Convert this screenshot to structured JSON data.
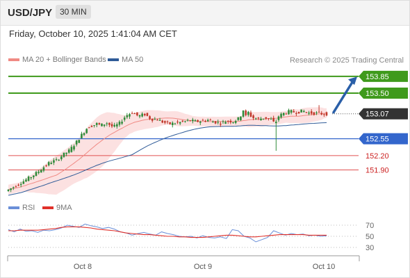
{
  "header": {
    "pair": "USD/JPY",
    "timeframe": "30 MIN"
  },
  "datetime": "Friday, October 10, 2025 1:41:04 AM CET",
  "legend": {
    "main": [
      {
        "label": "MA 20 + Bollinger Bands",
        "color": "#f08a84"
      },
      {
        "label": "MA 50",
        "color": "#2f5b98"
      }
    ],
    "rsi": [
      {
        "label": "RSI",
        "color": "#6a8fd8"
      },
      {
        "label": "9MA",
        "color": "#e0302a"
      }
    ]
  },
  "attribution": "Research © 2025 Trading Central",
  "colors": {
    "up": "#2e8b3a",
    "down": "#c0392b",
    "resistance": "#3f9a1c",
    "support": "#3366cc",
    "bands": "#fbdcdc",
    "ma20": "#f08a84",
    "ma50": "#2f5b98",
    "arrow": "#2a5fa8",
    "last": "#333333"
  },
  "chart_data": [
    {
      "type": "candlestick",
      "title": "USD/JPY",
      "ylim": [
        151.3,
        154.05
      ],
      "x_ticks": [
        "Oct 8",
        "Oct 9",
        "Oct 10"
      ],
      "price_path": [
        [
          0,
          151.46
        ],
        [
          5,
          151.53
        ],
        [
          10,
          151.61
        ],
        [
          15,
          151.68
        ],
        [
          20,
          151.76
        ],
        [
          25,
          151.85
        ],
        [
          30,
          151.96
        ],
        [
          35,
          152.06
        ],
        [
          40,
          152.1
        ],
        [
          45,
          152.21
        ],
        [
          50,
          152.3
        ],
        [
          55,
          152.45
        ],
        [
          60,
          152.63
        ],
        [
          65,
          152.8
        ],
        [
          70,
          152.84
        ],
        [
          72,
          152.86
        ],
        [
          75,
          152.83
        ],
        [
          80,
          152.88
        ],
        [
          85,
          152.79
        ],
        [
          90,
          152.87
        ],
        [
          95,
          153.03
        ],
        [
          100,
          153.1
        ],
        [
          105,
          153.02
        ],
        [
          110,
          153.06
        ],
        [
          115,
          152.96
        ],
        [
          120,
          152.95
        ],
        [
          125,
          152.89
        ],
        [
          130,
          152.86
        ],
        [
          135,
          152.88
        ],
        [
          140,
          152.9
        ],
        [
          145,
          152.93
        ],
        [
          150,
          152.91
        ],
        [
          155,
          152.92
        ],
        [
          160,
          152.94
        ],
        [
          165,
          152.9
        ],
        [
          170,
          152.88
        ],
        [
          175,
          152.92
        ],
        [
          180,
          152.91
        ],
        [
          185,
          152.98
        ],
        [
          188,
          153.15
        ],
        [
          190,
          153.02
        ],
        [
          192,
          153.1
        ],
        [
          195,
          152.99
        ],
        [
          200,
          152.96
        ],
        [
          205,
          152.99
        ],
        [
          210,
          152.95
        ],
        [
          213,
          152.86
        ],
        [
          216,
          153.02
        ],
        [
          220,
          153.08
        ],
        [
          225,
          153.12
        ],
        [
          230,
          153.1
        ],
        [
          235,
          153.13
        ],
        [
          240,
          153.09
        ],
        [
          245,
          153.08
        ],
        [
          250,
          153.07
        ],
        [
          252,
          153.07
        ]
      ],
      "levels": [
        {
          "label": "153.85",
          "value": 153.85,
          "kind": "resistance",
          "tag": true
        },
        {
          "label": "153.50",
          "value": 153.5,
          "kind": "resistance",
          "tag": true
        },
        {
          "label": "153.07",
          "value": 153.07,
          "kind": "last",
          "tag": true
        },
        {
          "label": "152.55",
          "value": 152.55,
          "kind": "support",
          "tag": true
        },
        {
          "label": "152.20",
          "value": 152.2,
          "kind": "minor",
          "tag": false
        },
        {
          "label": "151.90",
          "value": 151.9,
          "kind": "minor",
          "tag": false
        }
      ]
    },
    {
      "type": "line",
      "title": "RSI",
      "ylim": [
        20,
        80
      ],
      "y_ticks": [
        70,
        50,
        30
      ],
      "series": [
        {
          "name": "RSI",
          "values": [
            62,
            58,
            63,
            59,
            60,
            57,
            61,
            60,
            62,
            65,
            70,
            68,
            66,
            72,
            69,
            67,
            64,
            66,
            63,
            58,
            56,
            52,
            55,
            57,
            54,
            52,
            58,
            55,
            53,
            50,
            49,
            50,
            47,
            51,
            48,
            47,
            49,
            46,
            62,
            60,
            50,
            47,
            40,
            44,
            48,
            60,
            56,
            52,
            55,
            53,
            54,
            51,
            52,
            50,
            51
          ]
        },
        {
          "name": "9MA",
          "values": [
            60,
            60,
            61,
            61,
            61,
            61,
            62,
            63,
            64,
            66,
            67,
            67,
            67,
            66,
            65,
            63,
            62,
            61,
            60,
            58,
            56,
            55,
            54,
            53,
            53,
            52,
            51,
            50,
            50,
            49,
            49,
            48,
            48,
            48,
            49,
            50,
            51,
            52,
            52,
            51,
            50,
            49,
            49,
            50,
            51,
            52,
            53,
            53,
            53,
            53,
            53,
            52,
            52,
            52,
            52
          ]
        }
      ]
    }
  ]
}
